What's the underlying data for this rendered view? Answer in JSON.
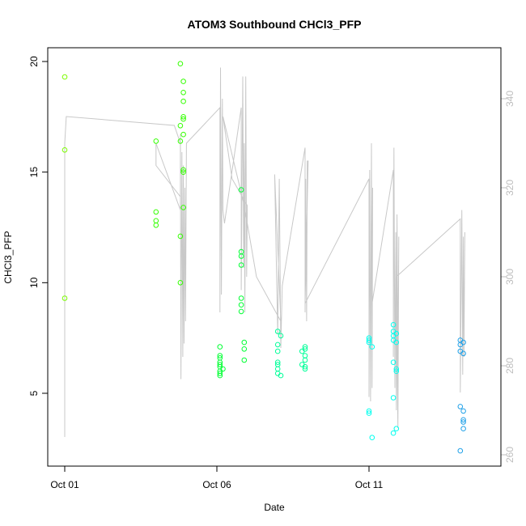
{
  "chart_data": {
    "type": "scatter",
    "title": "ATOM3 Southbound CHCl3_PFP",
    "xlabel": "Date",
    "ylabel": "CHCl3_PFP",
    "x_ticks": [
      {
        "day": 1,
        "label": "Oct 01"
      },
      {
        "day": 6,
        "label": "Oct 06"
      },
      {
        "day": 11,
        "label": "Oct 11"
      }
    ],
    "xlim": [
      1,
      14.3
    ],
    "ylim": [
      2,
      20
    ],
    "y_ticks": [
      5,
      10,
      15,
      20
    ],
    "y2lim": [
      260,
      343
    ],
    "y2_ticks": [
      260,
      280,
      300,
      320,
      340
    ],
    "y2_color": "#bdbdbd",
    "y2_line_color": "#c8c8c8",
    "grid": false,
    "series": [
      {
        "color": "#7cfc00",
        "points": [
          [
            1.0,
            19.3
          ],
          [
            1.0,
            16.0
          ],
          [
            1.0,
            9.3
          ]
        ]
      },
      {
        "color": "#33ff00",
        "points": [
          [
            4.0,
            16.4
          ],
          [
            4.0,
            13.2
          ],
          [
            4.0,
            12.8
          ],
          [
            4.0,
            12.6
          ],
          [
            4.8,
            19.9
          ],
          [
            4.9,
            19.1
          ],
          [
            4.9,
            18.6
          ],
          [
            4.9,
            18.2
          ],
          [
            4.9,
            17.5
          ],
          [
            4.9,
            17.4
          ],
          [
            4.8,
            17.1
          ],
          [
            4.9,
            16.7
          ],
          [
            4.8,
            16.4
          ],
          [
            4.9,
            15.1
          ],
          [
            4.9,
            15.0
          ],
          [
            4.9,
            13.4
          ],
          [
            4.8,
            12.1
          ],
          [
            4.8,
            10.0
          ]
        ]
      },
      {
        "color": "#00ff33",
        "points": [
          [
            6.1,
            7.1
          ],
          [
            6.1,
            6.7
          ],
          [
            6.1,
            6.6
          ],
          [
            6.1,
            6.4
          ],
          [
            6.1,
            6.3
          ],
          [
            6.1,
            6.2
          ],
          [
            6.2,
            6.1
          ],
          [
            6.1,
            6.0
          ],
          [
            6.1,
            5.9
          ],
          [
            6.1,
            5.8
          ],
          [
            6.8,
            14.2
          ],
          [
            6.8,
            11.4
          ],
          [
            6.8,
            11.2
          ],
          [
            6.8,
            10.8
          ],
          [
            6.8,
            9.3
          ],
          [
            6.8,
            9.0
          ],
          [
            6.8,
            8.7
          ],
          [
            6.9,
            7.3
          ],
          [
            6.9,
            7.0
          ],
          [
            6.9,
            6.5
          ]
        ]
      },
      {
        "color": "#00ff99",
        "points": [
          [
            8.0,
            7.8
          ],
          [
            8.1,
            7.6
          ],
          [
            8.0,
            7.2
          ],
          [
            8.0,
            6.9
          ],
          [
            8.0,
            6.4
          ],
          [
            8.0,
            6.3
          ],
          [
            8.0,
            6.1
          ],
          [
            8.0,
            5.9
          ],
          [
            8.1,
            5.8
          ],
          [
            8.9,
            7.1
          ],
          [
            8.9,
            7.0
          ],
          [
            8.8,
            6.9
          ],
          [
            8.9,
            6.7
          ],
          [
            8.9,
            6.5
          ],
          [
            8.8,
            6.3
          ],
          [
            8.9,
            6.2
          ],
          [
            8.9,
            6.1
          ]
        ]
      },
      {
        "color": "#00ffee",
        "points": [
          [
            11.0,
            7.5
          ],
          [
            11.0,
            7.4
          ],
          [
            11.0,
            7.3
          ],
          [
            11.1,
            7.1
          ],
          [
            11.0,
            4.2
          ],
          [
            11.0,
            4.1
          ],
          [
            11.1,
            3.0
          ],
          [
            11.8,
            8.1
          ],
          [
            11.8,
            7.8
          ],
          [
            11.9,
            7.7
          ],
          [
            11.8,
            7.6
          ],
          [
            11.8,
            7.4
          ],
          [
            11.9,
            7.3
          ],
          [
            11.8,
            6.4
          ],
          [
            11.9,
            6.1
          ],
          [
            11.9,
            6.0
          ],
          [
            11.8,
            4.8
          ],
          [
            11.9,
            3.4
          ],
          [
            11.8,
            3.2
          ]
        ]
      },
      {
        "color": "#1ea0e8",
        "points": [
          [
            14.0,
            7.4
          ],
          [
            14.1,
            7.3
          ],
          [
            14.0,
            7.2
          ],
          [
            14.0,
            6.9
          ],
          [
            14.1,
            6.8
          ],
          [
            14.0,
            4.4
          ],
          [
            14.1,
            4.2
          ],
          [
            14.1,
            3.8
          ],
          [
            14.1,
            3.7
          ],
          [
            14.1,
            3.4
          ],
          [
            14.0,
            2.4
          ]
        ]
      }
    ],
    "secondary_line": [
      [
        1.0,
        264
      ],
      [
        1.0,
        330
      ],
      [
        1.05,
        336
      ],
      [
        4.6,
        334
      ],
      [
        4.8,
        330
      ],
      [
        4.8,
        318
      ],
      [
        4.0,
        325
      ],
      [
        4.0,
        330
      ],
      [
        4.05,
        329
      ],
      [
        4.8,
        315
      ],
      [
        4.8,
        332
      ],
      [
        4.82,
        277
      ],
      [
        4.85,
        328
      ],
      [
        4.88,
        282
      ],
      [
        4.9,
        325
      ],
      [
        4.92,
        285
      ],
      [
        4.95,
        320
      ],
      [
        4.97,
        290
      ],
      [
        5.0,
        330
      ],
      [
        6.1,
        338
      ],
      [
        6.1,
        292
      ],
      [
        6.12,
        347
      ],
      [
        6.15,
        296
      ],
      [
        6.18,
        340
      ],
      [
        6.2,
        315
      ],
      [
        6.25,
        312
      ],
      [
        6.8,
        338
      ],
      [
        6.8,
        297
      ],
      [
        6.85,
        345
      ],
      [
        6.88,
        302
      ],
      [
        6.9,
        330
      ],
      [
        6.92,
        292
      ],
      [
        6.95,
        345
      ],
      [
        6.98,
        300
      ],
      [
        7.0,
        316
      ],
      [
        6.5,
        322
      ],
      [
        6.2,
        336
      ],
      [
        6.9,
        316
      ],
      [
        7.3,
        300
      ],
      [
        8.1,
        290
      ],
      [
        7.9,
        323
      ],
      [
        8.0,
        287
      ],
      [
        8.05,
        322
      ],
      [
        8.1,
        284
      ],
      [
        8.15,
        298
      ],
      [
        8.9,
        329
      ],
      [
        8.9,
        292
      ],
      [
        8.92,
        322
      ],
      [
        8.95,
        290
      ],
      [
        8.97,
        326
      ],
      [
        9.0,
        326
      ],
      [
        8.9,
        294
      ],
      [
        11.0,
        322
      ],
      [
        11.0,
        273
      ],
      [
        11.02,
        324
      ],
      [
        11.05,
        272
      ],
      [
        11.08,
        330
      ],
      [
        11.1,
        275
      ],
      [
        11.12,
        320
      ],
      [
        11.1,
        294
      ],
      [
        11.8,
        324
      ],
      [
        11.8,
        282
      ],
      [
        11.82,
        329
      ],
      [
        11.85,
        275
      ],
      [
        11.88,
        310
      ],
      [
        11.9,
        270
      ],
      [
        11.92,
        314
      ],
      [
        11.95,
        280
      ],
      [
        11.98,
        309
      ],
      [
        11.95,
        266
      ],
      [
        11.9,
        300
      ],
      [
        14.0,
        313
      ],
      [
        14.0,
        274
      ],
      [
        14.05,
        315
      ],
      [
        14.08,
        278
      ],
      [
        14.1,
        309
      ],
      [
        14.12,
        282
      ],
      [
        14.15,
        310
      ]
    ]
  }
}
